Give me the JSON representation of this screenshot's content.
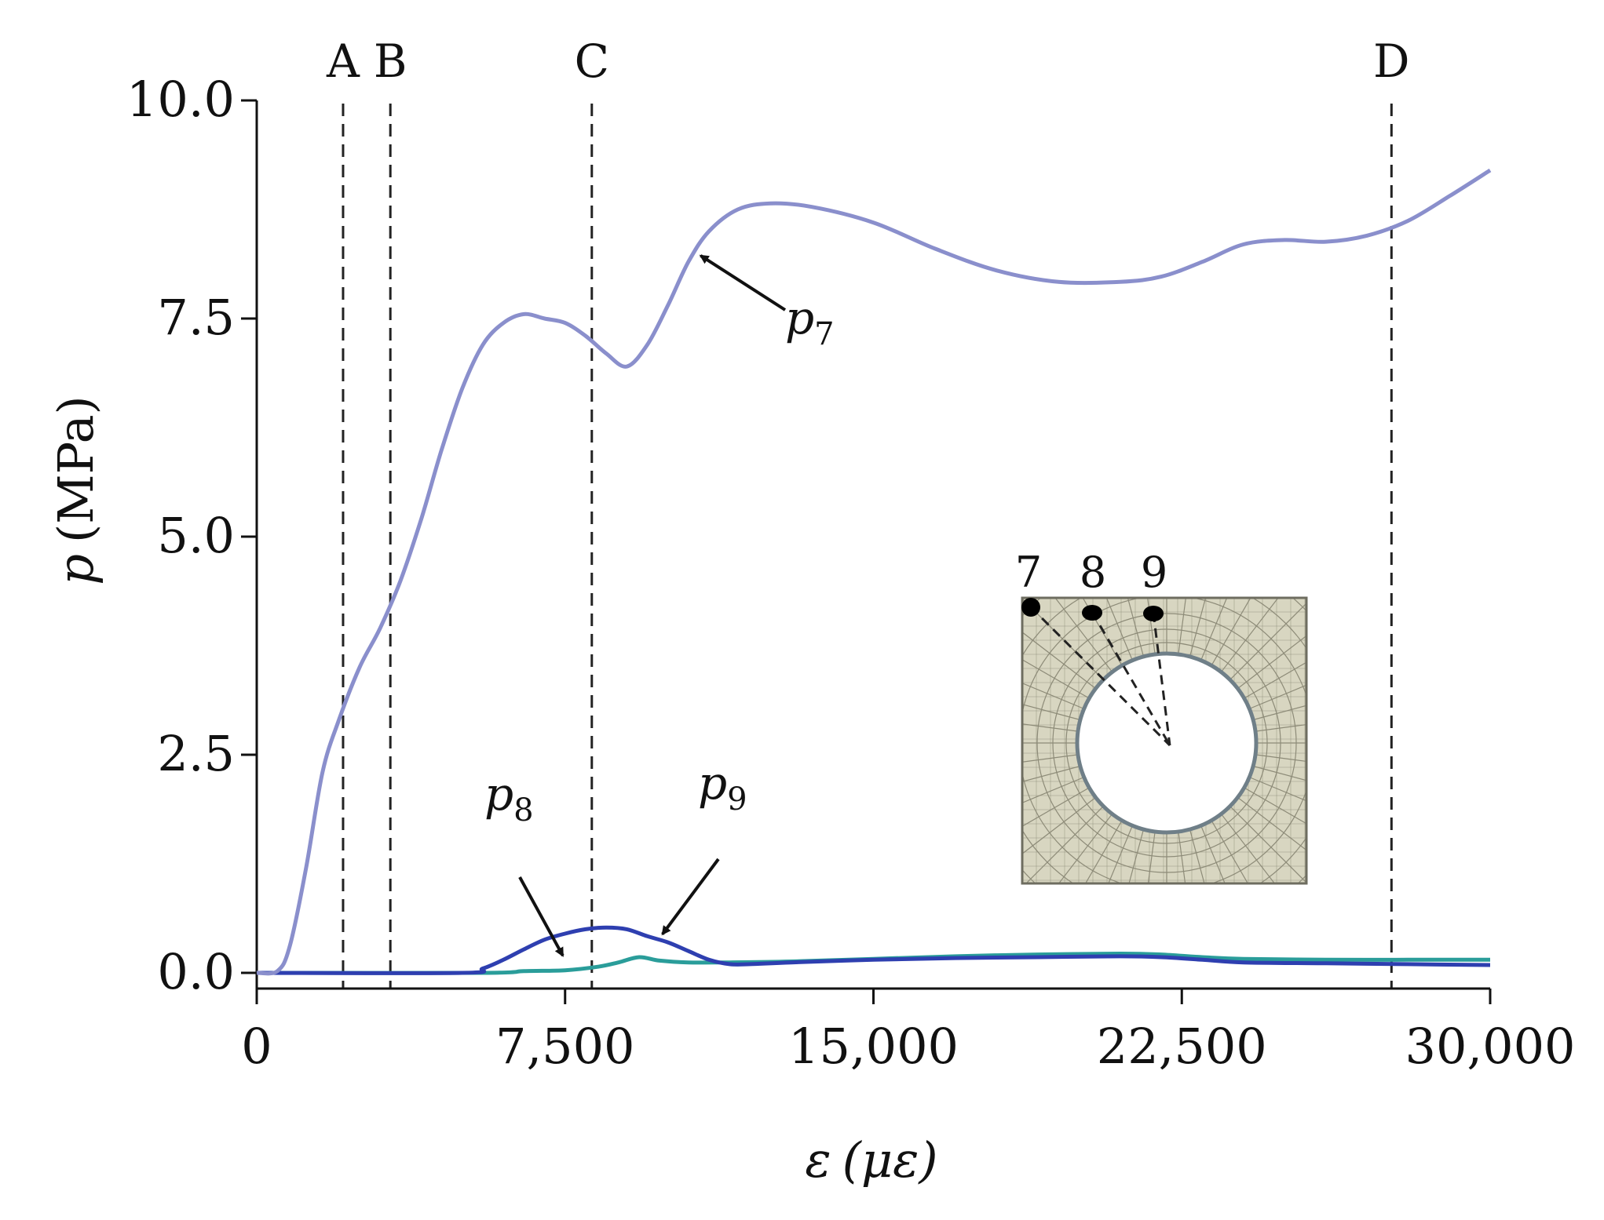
{
  "chart_data": {
    "type": "line",
    "title": "",
    "xlabel_symbol": "ε",
    "xlabel_unit": "(με)",
    "ylabel_symbol": "p",
    "ylabel_unit": "(MPa)",
    "xlim": [
      0,
      30000
    ],
    "ylim": [
      0,
      10
    ],
    "xticks": [
      0,
      7500,
      15000,
      22500,
      30000
    ],
    "xtick_labels": [
      "0",
      "7,500",
      "15,000",
      "22,500",
      "30,000"
    ],
    "yticks": [
      0,
      2.5,
      5,
      7.5,
      10
    ],
    "ytick_labels": [
      "0.0",
      "2.5",
      "5.0",
      "7.5",
      "10.0"
    ],
    "grid": false,
    "markers": [
      {
        "label": "A",
        "x": 2100
      },
      {
        "label": "B",
        "x": 3250
      },
      {
        "label": "C",
        "x": 8150
      },
      {
        "label": "D",
        "x": 27600
      }
    ],
    "series": [
      {
        "name": "p",
        "subscript": "7",
        "color": "#8a8fcc",
        "points": [
          [
            0,
            0
          ],
          [
            500,
            0.02
          ],
          [
            800,
            0.3
          ],
          [
            1200,
            1.2
          ],
          [
            1600,
            2.3
          ],
          [
            2000,
            2.9
          ],
          [
            2500,
            3.5
          ],
          [
            3000,
            3.95
          ],
          [
            3500,
            4.5
          ],
          [
            4000,
            5.2
          ],
          [
            4500,
            6.0
          ],
          [
            5000,
            6.7
          ],
          [
            5500,
            7.2
          ],
          [
            6000,
            7.45
          ],
          [
            6500,
            7.55
          ],
          [
            7000,
            7.5
          ],
          [
            7500,
            7.45
          ],
          [
            8000,
            7.3
          ],
          [
            8500,
            7.1
          ],
          [
            9000,
            6.95
          ],
          [
            9500,
            7.2
          ],
          [
            10000,
            7.65
          ],
          [
            10500,
            8.15
          ],
          [
            11000,
            8.5
          ],
          [
            11700,
            8.75
          ],
          [
            12500,
            8.82
          ],
          [
            13500,
            8.78
          ],
          [
            15000,
            8.6
          ],
          [
            16500,
            8.3
          ],
          [
            18000,
            8.05
          ],
          [
            19500,
            7.92
          ],
          [
            21000,
            7.92
          ],
          [
            22000,
            7.98
          ],
          [
            23000,
            8.15
          ],
          [
            24000,
            8.35
          ],
          [
            25000,
            8.4
          ],
          [
            26000,
            8.38
          ],
          [
            27000,
            8.45
          ],
          [
            28000,
            8.62
          ],
          [
            29000,
            8.9
          ],
          [
            30000,
            9.2
          ]
        ]
      },
      {
        "name": "p",
        "subscript": "8",
        "color": "#2e3fb0",
        "points": [
          [
            0,
            0
          ],
          [
            5000,
            0
          ],
          [
            5500,
            0.05
          ],
          [
            6000,
            0.15
          ],
          [
            6500,
            0.27
          ],
          [
            7000,
            0.38
          ],
          [
            7500,
            0.45
          ],
          [
            8000,
            0.5
          ],
          [
            8500,
            0.52
          ],
          [
            9000,
            0.5
          ],
          [
            9500,
            0.42
          ],
          [
            10000,
            0.35
          ],
          [
            10500,
            0.25
          ],
          [
            11000,
            0.15
          ],
          [
            11500,
            0.1
          ],
          [
            12000,
            0.1
          ],
          [
            13000,
            0.12
          ],
          [
            15000,
            0.15
          ],
          [
            17000,
            0.17
          ],
          [
            19000,
            0.18
          ],
          [
            21000,
            0.19
          ],
          [
            22000,
            0.18
          ],
          [
            23000,
            0.15
          ],
          [
            24000,
            0.12
          ],
          [
            26000,
            0.11
          ],
          [
            28000,
            0.1
          ],
          [
            30000,
            0.09
          ]
        ]
      },
      {
        "name": "p",
        "subscript": "9",
        "color": "#2a9d9a",
        "points": [
          [
            0,
            0
          ],
          [
            5500,
            0
          ],
          [
            6500,
            0.02
          ],
          [
            7500,
            0.03
          ],
          [
            8300,
            0.07
          ],
          [
            8800,
            0.12
          ],
          [
            9300,
            0.18
          ],
          [
            9800,
            0.14
          ],
          [
            10500,
            0.12
          ],
          [
            11500,
            0.12
          ],
          [
            13000,
            0.13
          ],
          [
            15000,
            0.16
          ],
          [
            17000,
            0.19
          ],
          [
            19000,
            0.21
          ],
          [
            21000,
            0.22
          ],
          [
            22000,
            0.21
          ],
          [
            23000,
            0.18
          ],
          [
            24000,
            0.16
          ],
          [
            26000,
            0.15
          ],
          [
            28000,
            0.15
          ],
          [
            30000,
            0.15
          ]
        ]
      }
    ],
    "annotations": [
      {
        "text": "p",
        "subscript": "7",
        "arrow_to": [
          10700,
          8.25
        ]
      },
      {
        "text": "p",
        "subscript": "8",
        "arrow_to": [
          7500,
          0.15
        ]
      },
      {
        "text": "p",
        "subscript": "9",
        "arrow_to": [
          9800,
          0.4
        ]
      }
    ],
    "inset": {
      "description_labels": [
        "7",
        "8",
        "9"
      ],
      "fill_color": "#d8d6c1",
      "mesh_color": "#8d8b78",
      "border_color": "#6e6d60"
    }
  }
}
